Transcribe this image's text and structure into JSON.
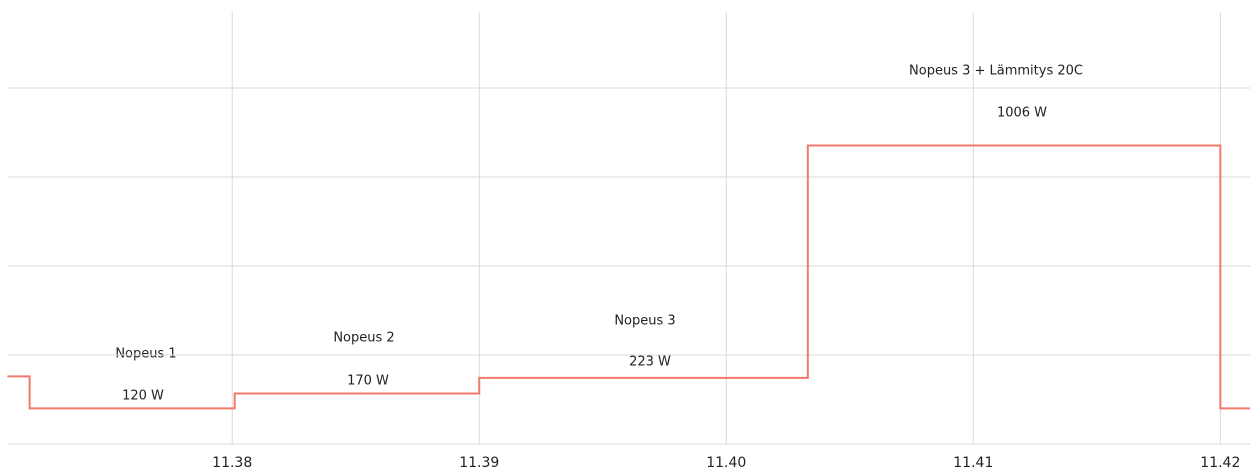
{
  "chart_data": {
    "type": "line",
    "step": "post",
    "x": [
      37.09,
      37.18,
      38.01,
      39.0,
      40.33,
      42.0,
      42.12
    ],
    "series": [
      {
        "color": "#f07a6a",
        "values": [
          228,
          120,
          170,
          223,
          1006,
          120,
          120
        ]
      }
    ],
    "xlim": [
      37.06,
      42.12
    ],
    "xticks": [
      {
        "value": 38,
        "label": "11.38"
      },
      {
        "value": 39,
        "label": "11.39"
      },
      {
        "value": 40,
        "label": "11.40"
      },
      {
        "value": 41,
        "label": "11.41"
      },
      {
        "value": 42,
        "label": "11.42"
      }
    ],
    "ylim": [
      0,
      1456
    ],
    "yticks": [
      0,
      300,
      600,
      900,
      1200
    ],
    "grid": true,
    "annotations": [
      "Nopeus 1",
      "120 W",
      "Nopeus 2",
      "170 W",
      "Nopeus 3",
      "223 W",
      "Nopeus 3 + Lämmitys 20C",
      "1006 W"
    ]
  }
}
